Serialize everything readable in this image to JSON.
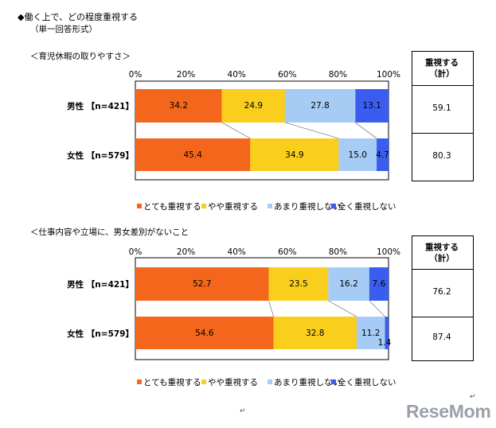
{
  "header": {
    "title": "◆働く上で、どの程度重視する",
    "subtitle": "（単一回答形式）"
  },
  "legend_labels": [
    "とても重視する",
    "やや重視する",
    "あまり重視しない",
    "全く重視しない"
  ],
  "colors": [
    "#f4661b",
    "#f9ce1d",
    "#a6cbf4",
    "#3a5df0"
  ],
  "table_header": "重視する（計）",
  "table_header_lines": [
    "重視する",
    "（計）"
  ],
  "logo_text": "ReseMom",
  "chart_data": [
    {
      "type": "bar",
      "orientation": "horizontal",
      "stacked": "percent",
      "title": "＜育児休暇の取りやすさ＞",
      "categories": [
        "男性 【n=421】",
        "女性 【n=579】"
      ],
      "xlim": [
        0,
        100
      ],
      "x_ticks": [
        "0%",
        "20%",
        "40%",
        "60%",
        "80%",
        "100%"
      ],
      "series": [
        {
          "name": "とても重視する",
          "values": [
            34.2,
            45.4
          ]
        },
        {
          "name": "やや重視する",
          "values": [
            24.9,
            34.9
          ]
        },
        {
          "name": "あまり重視しない",
          "values": [
            27.8,
            15.0
          ]
        },
        {
          "name": "全く重視しない",
          "values": [
            13.1,
            4.7
          ]
        }
      ],
      "value_labels": [
        [
          "34.2",
          "24.9",
          "27.8",
          "13.1"
        ],
        [
          "45.4",
          "34.9",
          "15.0",
          "4.7"
        ]
      ],
      "totals": [
        "59.1",
        "80.3"
      ]
    },
    {
      "type": "bar",
      "orientation": "horizontal",
      "stacked": "percent",
      "title": "＜仕事内容や立場に、男女差別がないこと",
      "categories": [
        "男性 【n=421】",
        "女性 【n=579】"
      ],
      "xlim": [
        0,
        100
      ],
      "x_ticks": [
        "0%",
        "20%",
        "40%",
        "60%",
        "80%",
        "100%"
      ],
      "series": [
        {
          "name": "とても重視する",
          "values": [
            52.7,
            54.6
          ]
        },
        {
          "name": "やや重視する",
          "values": [
            23.5,
            32.8
          ]
        },
        {
          "name": "あまり重視しない",
          "values": [
            16.2,
            11.2
          ]
        },
        {
          "name": "全く重視しない",
          "values": [
            7.6,
            1.4
          ]
        }
      ],
      "value_labels": [
        [
          "52.7",
          "23.5",
          "16.2",
          "7.6"
        ],
        [
          "54.6",
          "32.8",
          "11.2",
          "1.4"
        ]
      ],
      "totals": [
        "76.2",
        "87.4"
      ]
    }
  ]
}
